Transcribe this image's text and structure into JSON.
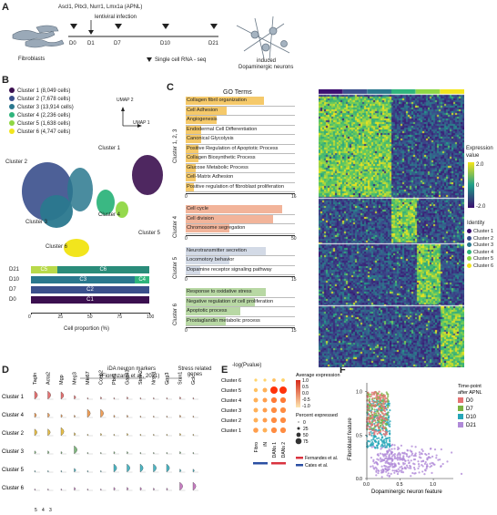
{
  "panel_labels": {
    "a": "A",
    "b": "B",
    "c": "C",
    "d": "D",
    "e": "E",
    "f": "F"
  },
  "panelA": {
    "factors": "Ascl1, Pitx3, Nurr1, Lmx1a (APNL)",
    "infection": "lentiviral infection",
    "days": [
      "D0",
      "D1",
      "D7",
      "D10",
      "D21"
    ],
    "fibro": "Fibroblasts",
    "scrna": "Single cell RNA - seq",
    "induced1": "induced",
    "induced2": "Dopaminergic neurons"
  },
  "panelB": {
    "legend": [
      {
        "label": "Cluster 1 (8,049 cells)",
        "color": "#3b0f4f"
      },
      {
        "label": "Cluster 2 (7,678 cells)",
        "color": "#3a4f8c"
      },
      {
        "label": "Cluster 3 (13,914 cells)",
        "color": "#2a788e"
      },
      {
        "label": "Cluster 4 (2,236 cells)",
        "color": "#2fb47c"
      },
      {
        "label": "Cluster 5 (1,638 cells)",
        "color": "#8fd744"
      },
      {
        "label": "Cluster 6 (4,747 cells)",
        "color": "#f2e51d"
      }
    ],
    "umap2": "UMAP 2",
    "umap1": "UMAP 1",
    "clusters": [
      "Cluster 1",
      "Cluster 2",
      "Cluster 3",
      "Cluster 4",
      "Cluster 5",
      "Cluster 6"
    ],
    "xlabel": "Cell proportion (%)",
    "ticks": [
      "0",
      "25",
      "50",
      "75",
      "100"
    ]
  },
  "chart_data": [
    {
      "type": "bar",
      "title": "",
      "xlabel": "Cell proportion (%)",
      "categories": [
        "D21",
        "D10",
        "D7",
        "D0"
      ],
      "series": [
        {
          "name": "C5",
          "values": [
            22,
            0,
            0,
            0
          ]
        },
        {
          "name": "C6",
          "values": [
            78,
            0,
            0,
            0
          ]
        },
        {
          "name": "C3",
          "values": [
            0,
            88,
            0,
            0
          ]
        },
        {
          "name": "C4",
          "values": [
            0,
            12,
            0,
            0
          ]
        },
        {
          "name": "C2",
          "values": [
            0,
            0,
            100,
            0
          ]
        },
        {
          "name": "C1",
          "values": [
            0,
            0,
            0,
            100
          ]
        }
      ],
      "xlim": [
        0,
        100
      ]
    },
    {
      "type": "bar",
      "title": "GO Terms",
      "xlabel": "-log(Pvalue)",
      "groups": [
        {
          "name": "Cluster 1, 2, 3",
          "color": "#f5c96a",
          "xmax": 16,
          "terms": [
            {
              "label": "Collagen fibril organization",
              "value": 11.5
            },
            {
              "label": "Cell Adhesion",
              "value": 6
            },
            {
              "label": "Angiogenesis",
              "value": 4.5
            },
            {
              "label": "Endodermal Cell Differentiation",
              "value": 2.2
            },
            {
              "label": "Canonical Glycolysis",
              "value": 2.2
            },
            {
              "label": "Positive Regulation of Apoptotic Process",
              "value": 1.8
            },
            {
              "label": "Collagen Biosynthetic Process",
              "value": 1.8
            },
            {
              "label": "Glucose Metabolic Process",
              "value": 1.5
            },
            {
              "label": "Cell-Matrix Adhesion",
              "value": 1.5
            },
            {
              "label": "Positive regulation of fibroblast proliferation",
              "value": 1.2
            }
          ]
        },
        {
          "name": "Cluster 4",
          "color": "#f2b49a",
          "xmax": 50,
          "terms": [
            {
              "label": "Cell cycle",
              "value": 44
            },
            {
              "label": "Cell division",
              "value": 40
            },
            {
              "label": "Chromosome segregation",
              "value": 20
            }
          ]
        },
        {
          "name": "Cluster 5",
          "color": "#d3dae6",
          "xmax": 15,
          "terms": [
            {
              "label": "Neurotransmitter secretion",
              "value": 11
            },
            {
              "label": "Locomotory behavior",
              "value": 6
            },
            {
              "label": "Dopamine receptor signaling pathway",
              "value": 2
            }
          ]
        },
        {
          "name": "Cluster 6",
          "color": "#b8d8a4",
          "xmax": 15,
          "terms": [
            {
              "label": "Response to oxidative stress",
              "value": 11
            },
            {
              "label": "Negative regulation of cell proliferation",
              "value": 9.5
            },
            {
              "label": "Apoptotic process",
              "value": 7.5
            },
            {
              "label": "Prostaglandin metabolic process",
              "value": 5.5
            }
          ]
        }
      ]
    },
    {
      "type": "heatmap",
      "title": "",
      "legend_title": "Expression value",
      "scale": [
        -2.0,
        0,
        2.0
      ],
      "scale_labels": [
        "2.0",
        "0",
        "-2.0"
      ],
      "identity_title": "Identity",
      "identity": [
        "Cluster 1",
        "Cluster 2",
        "Cluster 3",
        "Cluster 4",
        "Cluster 5",
        "Cluster 6"
      ]
    },
    {
      "type": "scatter",
      "title": "",
      "panel": "D",
      "header1": "iDA neuron markers",
      "header2": "(Fiorenzano et al., 2021)",
      "header3": "Stress related genes",
      "genes": [
        "Tagln",
        "Acta2",
        "Mgp",
        "Meg3",
        "Mki67",
        "Ccnb2",
        "Pbx1",
        "Gap43",
        "Stmn2",
        "Nrsn1",
        "Gng3",
        "Srxn1",
        "Gclc"
      ],
      "clusters": [
        "Cluster 1",
        "Cluster 4",
        "Cluster 2",
        "Cluster 3",
        "Cluster 5",
        "Cluster 6"
      ],
      "axis_ticks": [
        "5",
        "4",
        "3"
      ]
    },
    {
      "type": "scatter",
      "title": "",
      "panel": "E",
      "rows": [
        "Cluster 6",
        "Cluster 5",
        "Cluster 4",
        "Cluster 3",
        "Cluster 2",
        "Cluster 1"
      ],
      "cols": [
        "Fibro",
        "iN",
        "DANs 1",
        "DANs 2"
      ],
      "avg_title": "Average expression",
      "avg_ticks": [
        "1.0",
        "0.5",
        "0.0",
        "-0.5",
        "-1.0"
      ],
      "pct_title": "Percent expressed",
      "pct_ticks": [
        "0",
        "25",
        "50",
        "75"
      ],
      "refs": [
        {
          "label": "Fernandes et al.",
          "color": "#d9333f"
        },
        {
          "label": "Cates et al.",
          "color": "#2b4fa3"
        }
      ]
    },
    {
      "type": "scatter",
      "title": "",
      "panel": "F",
      "xlabel": "Dopaminergic neuron feature",
      "ylabel": "Fibroblast feature",
      "xticks": [
        "0.0",
        "0.5",
        "1.0"
      ],
      "yticks": [
        "0.0",
        "0.5",
        "1.0"
      ],
      "legend_title1": "Time-point",
      "legend_title2": "after APNL",
      "series": [
        {
          "name": "D0",
          "color": "#e57373"
        },
        {
          "name": "D7",
          "color": "#7cb342"
        },
        {
          "name": "D10",
          "color": "#26a6b8"
        },
        {
          "name": "D21",
          "color": "#b08ad8"
        }
      ]
    }
  ]
}
